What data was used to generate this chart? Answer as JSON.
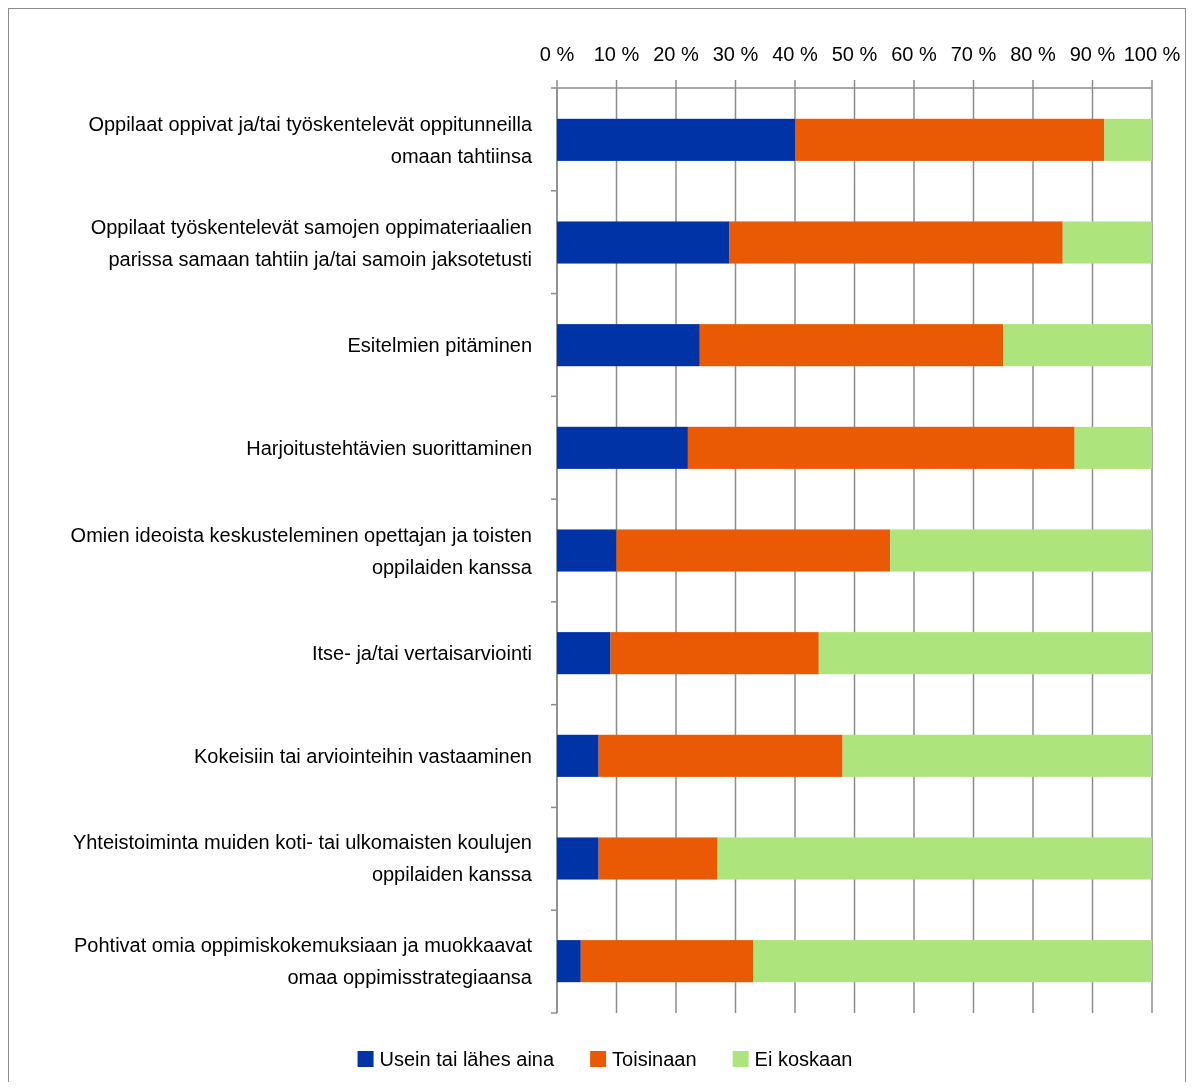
{
  "chart_data": {
    "type": "bar",
    "orientation": "horizontal",
    "stacked": true,
    "categories": [
      "Oppilaat oppivat ja/tai työskentelevät oppitunneilla omaan tahtiinsa",
      "Oppilaat työskentelevät samojen oppimateriaalien parissa samaan tahtiin ja/tai samoin jaksotetusti",
      "Esitelmien pitäminen",
      "Harjoitustehtävien suorittaminen",
      "Omien ideoista keskusteleminen opettajan ja toisten oppilaiden kanssa",
      "Itse- ja/tai vertaisarviointi",
      "Kokeisiin tai arviointeihin vastaaminen",
      "Yhteistoiminta muiden koti- tai ulkomaisten koulujen oppilaiden kanssa",
      "Pohtivat omia oppimiskokemuksiaan ja muokkaavat omaa oppimisstrategiaansa"
    ],
    "series": [
      {
        "name": "Usein tai lähes aina",
        "color": "#0033a6",
        "values": [
          40,
          29,
          24,
          22,
          10,
          9,
          7,
          7,
          4
        ]
      },
      {
        "name": "Toisinaan",
        "color": "#ea5904",
        "values": [
          52,
          56,
          51,
          65,
          46,
          35,
          41,
          20,
          29
        ]
      },
      {
        "name": "Ei koskaan",
        "color": "#ade57c",
        "values": [
          8,
          15,
          25,
          13,
          44,
          56,
          52,
          73,
          67
        ]
      }
    ],
    "xlim": [
      0,
      100
    ],
    "xticks": [
      {
        "value": 0,
        "label": "0 %"
      },
      {
        "value": 10,
        "label": "10 %"
      },
      {
        "value": 20,
        "label": "20 %"
      },
      {
        "value": 30,
        "label": "30 %"
      },
      {
        "value": 40,
        "label": "40 %"
      },
      {
        "value": 50,
        "label": "50 %"
      },
      {
        "value": 60,
        "label": "60 %"
      },
      {
        "value": 70,
        "label": "70 %"
      },
      {
        "value": 80,
        "label": "80 %"
      },
      {
        "value": 90,
        "label": "90 %"
      },
      {
        "value": 100,
        "label": "100 %"
      }
    ],
    "grid": "x",
    "legend": "bottom"
  }
}
